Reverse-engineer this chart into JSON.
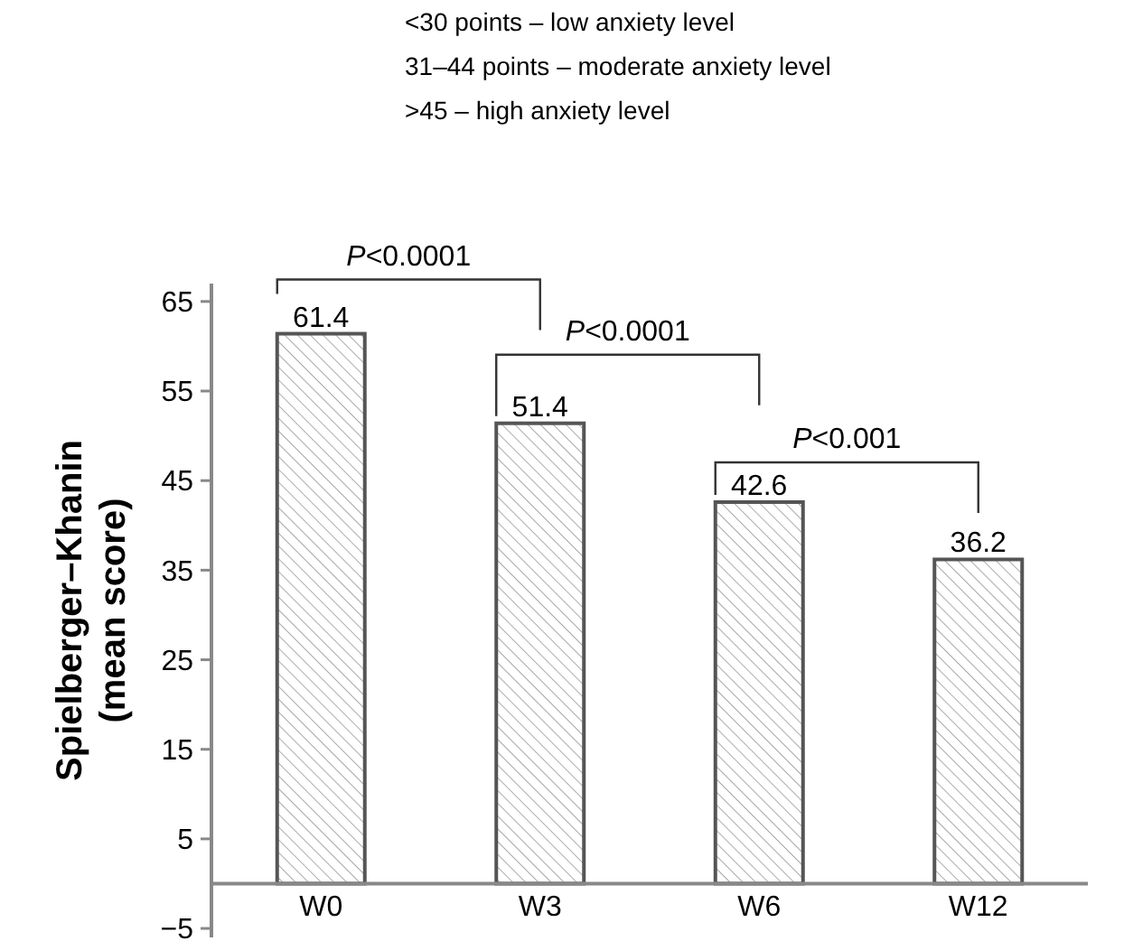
{
  "chart_data": {
    "type": "bar",
    "ylabel": "Spielberger–Khanin\n(mean score)",
    "categories": [
      "W0",
      "W3",
      "W6",
      "W12"
    ],
    "values": [
      61.4,
      51.4,
      42.6,
      36.2
    ],
    "color": "#555555",
    "data_labels": true,
    "ylim": [
      -6,
      67
    ],
    "yticks": [
      -5,
      5,
      15,
      25,
      35,
      45,
      55,
      65
    ],
    "grid": false,
    "annotations": [
      "<30 points – low anxiety level",
      "31–44 points – moderate anxiety level",
      ">45 – high anxiety level",
      "P<0.0001",
      "P<0.0001",
      "P<0.001"
    ]
  }
}
